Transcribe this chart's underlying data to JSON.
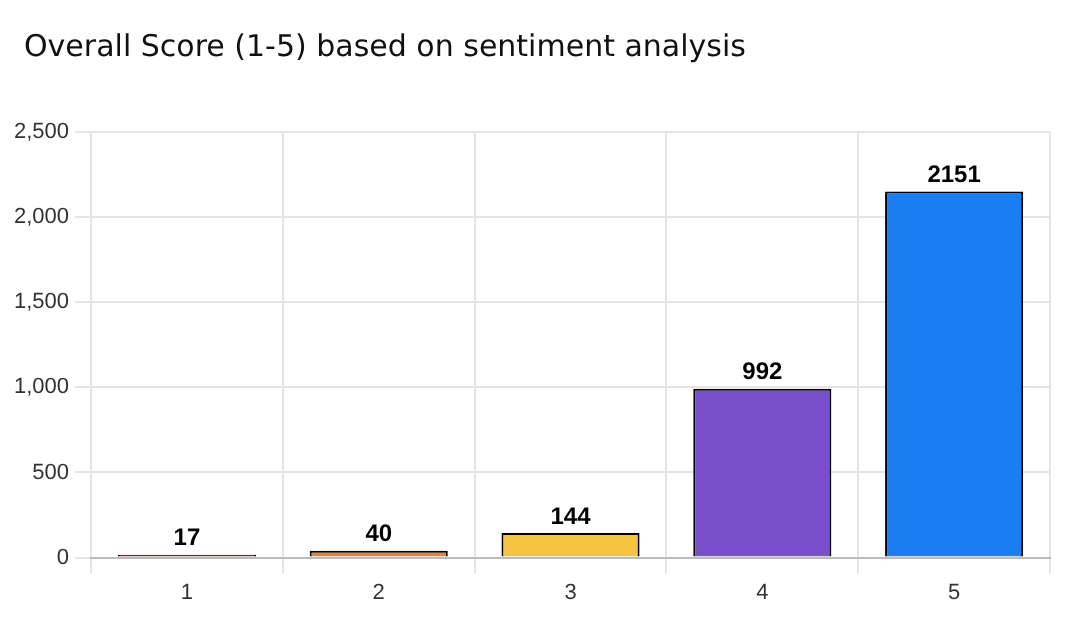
{
  "chart_data": {
    "type": "bar",
    "title": "Overall Score (1-5) based on sentiment analysis",
    "categories": [
      "1",
      "2",
      "3",
      "4",
      "5"
    ],
    "values": [
      17,
      40,
      144,
      992,
      2151
    ],
    "colors": [
      "#a3271f",
      "#e8823a",
      "#f5c242",
      "#7a4fcc",
      "#1a7ef2"
    ],
    "ylim": [
      0,
      2500
    ],
    "yticks": [
      0,
      500,
      {
        "value": 1000,
        "label": "1,000"
      },
      {
        "value": 1500,
        "label": "1,500"
      },
      {
        "value": 2000,
        "label": "2,000"
      },
      {
        "value": 2500,
        "label": "2,500"
      }
    ],
    "grid": true,
    "data_labels": true
  }
}
